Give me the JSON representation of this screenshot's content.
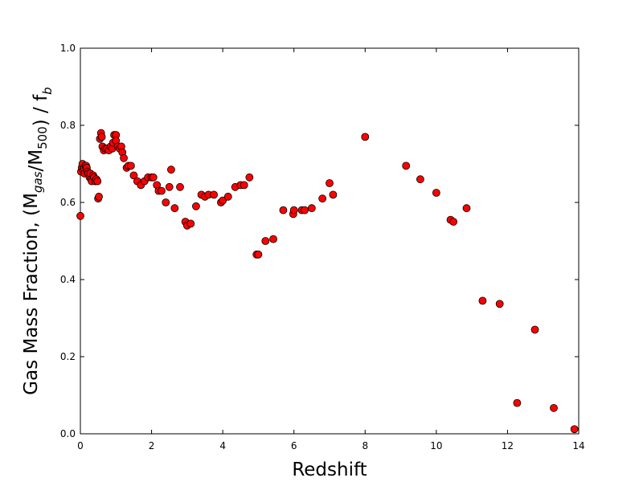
{
  "chart_data": {
    "type": "scatter",
    "title": "",
    "xlabel": "Redshift",
    "ylabel": {
      "parts": [
        {
          "t": "Gas Mass Fraction, (M",
          "sub": false
        },
        {
          "t": "gas",
          "sub": true,
          "italic": true
        },
        {
          "t": "/M",
          "sub": false
        },
        {
          "t": "500",
          "sub": true
        },
        {
          "t": ") / f",
          "sub": false
        },
        {
          "t": "b",
          "sub": true,
          "italic": true
        }
      ]
    },
    "xlim": [
      0,
      14
    ],
    "ylim": [
      0.0,
      1.0
    ],
    "xticks": [
      "0",
      "2",
      "4",
      "6",
      "8",
      "10",
      "12",
      "14"
    ],
    "yticks": [
      "0.0",
      "0.2",
      "0.4",
      "0.6",
      "0.8",
      "1.0"
    ],
    "grid": false,
    "marker_color": "#ff0000",
    "marker_edge": "#000000",
    "points": [
      [
        0.0,
        0.565
      ],
      [
        0.02,
        0.68
      ],
      [
        0.04,
        0.69
      ],
      [
        0.06,
        0.7
      ],
      [
        0.08,
        0.685
      ],
      [
        0.1,
        0.69
      ],
      [
        0.12,
        0.675
      ],
      [
        0.14,
        0.695
      ],
      [
        0.16,
        0.695
      ],
      [
        0.18,
        0.69
      ],
      [
        0.2,
        0.68
      ],
      [
        0.22,
        0.675
      ],
      [
        0.26,
        0.665
      ],
      [
        0.28,
        0.675
      ],
      [
        0.3,
        0.66
      ],
      [
        0.32,
        0.655
      ],
      [
        0.36,
        0.67
      ],
      [
        0.38,
        0.665
      ],
      [
        0.42,
        0.655
      ],
      [
        0.45,
        0.66
      ],
      [
        0.48,
        0.655
      ],
      [
        0.5,
        0.61
      ],
      [
        0.52,
        0.615
      ],
      [
        0.55,
        0.765
      ],
      [
        0.58,
        0.78
      ],
      [
        0.6,
        0.77
      ],
      [
        0.62,
        0.745
      ],
      [
        0.66,
        0.735
      ],
      [
        0.7,
        0.74
      ],
      [
        0.75,
        0.74
      ],
      [
        0.8,
        0.735
      ],
      [
        0.85,
        0.745
      ],
      [
        0.9,
        0.74
      ],
      [
        0.92,
        0.755
      ],
      [
        0.95,
        0.775
      ],
      [
        1.0,
        0.775
      ],
      [
        1.0,
        0.76
      ],
      [
        1.05,
        0.745
      ],
      [
        1.1,
        0.74
      ],
      [
        1.15,
        0.745
      ],
      [
        1.18,
        0.73
      ],
      [
        1.22,
        0.715
      ],
      [
        1.3,
        0.69
      ],
      [
        1.35,
        0.695
      ],
      [
        1.42,
        0.695
      ],
      [
        1.5,
        0.67
      ],
      [
        1.6,
        0.655
      ],
      [
        1.7,
        0.645
      ],
      [
        1.8,
        0.655
      ],
      [
        1.9,
        0.665
      ],
      [
        2.0,
        0.665
      ],
      [
        2.05,
        0.665
      ],
      [
        2.15,
        0.645
      ],
      [
        2.2,
        0.63
      ],
      [
        2.28,
        0.63
      ],
      [
        2.4,
        0.6
      ],
      [
        2.5,
        0.64
      ],
      [
        2.55,
        0.685
      ],
      [
        2.65,
        0.585
      ],
      [
        2.8,
        0.64
      ],
      [
        2.95,
        0.55
      ],
      [
        3.0,
        0.54
      ],
      [
        3.1,
        0.545
      ],
      [
        3.25,
        0.59
      ],
      [
        3.4,
        0.62
      ],
      [
        3.5,
        0.615
      ],
      [
        3.6,
        0.62
      ],
      [
        3.75,
        0.62
      ],
      [
        3.95,
        0.6
      ],
      [
        4.0,
        0.605
      ],
      [
        4.15,
        0.615
      ],
      [
        4.35,
        0.64
      ],
      [
        4.5,
        0.645
      ],
      [
        4.6,
        0.645
      ],
      [
        4.75,
        0.665
      ],
      [
        4.95,
        0.465
      ],
      [
        5.0,
        0.465
      ],
      [
        5.2,
        0.5
      ],
      [
        5.42,
        0.505
      ],
      [
        5.7,
        0.58
      ],
      [
        5.98,
        0.57
      ],
      [
        6.0,
        0.58
      ],
      [
        6.22,
        0.58
      ],
      [
        6.3,
        0.58
      ],
      [
        6.5,
        0.585
      ],
      [
        6.8,
        0.61
      ],
      [
        7.0,
        0.65
      ],
      [
        7.1,
        0.62
      ],
      [
        8.0,
        0.77
      ],
      [
        9.15,
        0.695
      ],
      [
        9.55,
        0.66
      ],
      [
        10.0,
        0.625
      ],
      [
        10.4,
        0.555
      ],
      [
        10.48,
        0.55
      ],
      [
        10.85,
        0.585
      ],
      [
        11.3,
        0.345
      ],
      [
        11.78,
        0.337
      ],
      [
        12.27,
        0.08
      ],
      [
        12.77,
        0.27
      ],
      [
        13.3,
        0.067
      ],
      [
        13.88,
        0.012
      ]
    ]
  }
}
